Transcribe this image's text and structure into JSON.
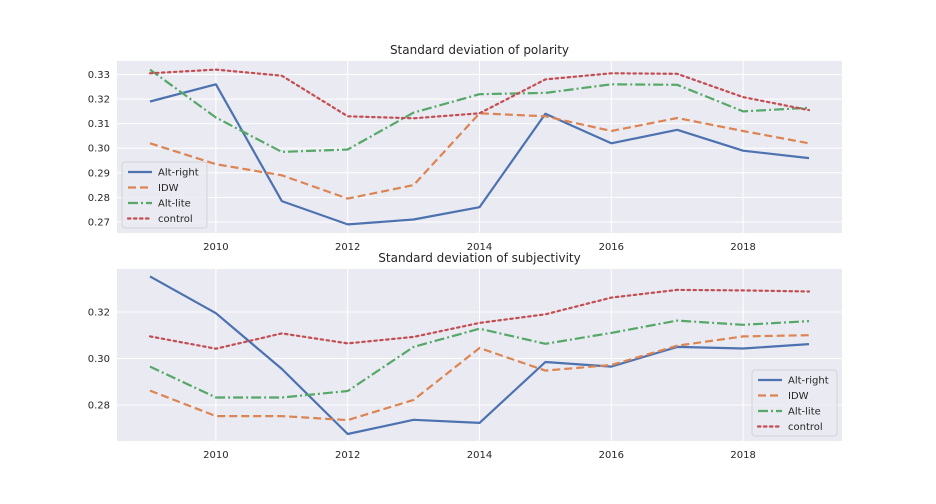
{
  "colors": {
    "plot_bg": "#EAEAF2",
    "grid": "#FFFFFF",
    "text": "#262626",
    "series": [
      "#4C72B0",
      "#DD8452",
      "#55A868",
      "#C44E52"
    ]
  },
  "chart_data": [
    {
      "type": "line",
      "title": "Standard deviation of polarity",
      "xlabel": "",
      "ylabel": "",
      "xlim": [
        2008.5,
        2019.5
      ],
      "ylim": [
        0.2655,
        0.3355
      ],
      "xticks": [
        2010,
        2012,
        2014,
        2016,
        2018
      ],
      "yticks": [
        0.27,
        0.28,
        0.29,
        0.3,
        0.31,
        0.32,
        0.33
      ],
      "ytick_labels": [
        "0.27",
        "0.28",
        "0.29",
        "0.30",
        "0.31",
        "0.32",
        "0.33"
      ],
      "grid": true,
      "legend": "center-left",
      "x": [
        2009,
        2010,
        2011,
        2012,
        2013,
        2014,
        2015,
        2016,
        2017,
        2018,
        2019
      ],
      "series": [
        {
          "name": "Alt-right",
          "dash": "solid",
          "values": [
            0.319,
            0.326,
            0.2785,
            0.269,
            0.271,
            0.276,
            0.314,
            0.302,
            0.3075,
            0.299,
            0.296
          ]
        },
        {
          "name": "IDW",
          "dash": "dashed",
          "values": [
            0.302,
            0.2935,
            0.289,
            0.2795,
            0.285,
            0.3142,
            0.313,
            0.307,
            0.3123,
            0.307,
            0.302
          ]
        },
        {
          "name": "Alt-lite",
          "dash": "dashdot",
          "values": [
            0.332,
            0.3125,
            0.2985,
            0.2995,
            0.3145,
            0.322,
            0.3225,
            0.326,
            0.3258,
            0.315,
            0.3165
          ]
        },
        {
          "name": "control",
          "dash": "dotted",
          "values": [
            0.3305,
            0.332,
            0.3295,
            0.313,
            0.3122,
            0.3142,
            0.328,
            0.3305,
            0.3303,
            0.3208,
            0.3155
          ]
        }
      ]
    },
    {
      "type": "line",
      "title": "Standard deviation of subjectivity",
      "xlabel": "",
      "ylabel": "",
      "xlim": [
        2008.5,
        2019.5
      ],
      "ylim": [
        0.2645,
        0.3385
      ],
      "xticks": [
        2010,
        2012,
        2014,
        2016,
        2018
      ],
      "yticks": [
        0.28,
        0.3,
        0.32
      ],
      "ytick_labels": [
        "0.28",
        "0.30",
        "0.32"
      ],
      "grid": true,
      "legend": "lower-right",
      "x": [
        2009,
        2010,
        2011,
        2012,
        2013,
        2014,
        2015,
        2016,
        2017,
        2018,
        2019
      ],
      "series": [
        {
          "name": "Alt-right",
          "dash": "solid",
          "values": [
            0.3353,
            0.3195,
            0.2955,
            0.2675,
            0.2736,
            0.2723,
            0.2985,
            0.2965,
            0.305,
            0.3043,
            0.3062
          ]
        },
        {
          "name": "IDW",
          "dash": "dashed",
          "values": [
            0.2862,
            0.2752,
            0.2752,
            0.2735,
            0.2822,
            0.3045,
            0.2948,
            0.2972,
            0.3055,
            0.3095,
            0.31
          ]
        },
        {
          "name": "Alt-lite",
          "dash": "dashdot",
          "values": [
            0.2965,
            0.2832,
            0.2832,
            0.286,
            0.305,
            0.3128,
            0.3063,
            0.311,
            0.3163,
            0.3145,
            0.3161
          ]
        },
        {
          "name": "control",
          "dash": "dotted",
          "values": [
            0.3095,
            0.3042,
            0.3108,
            0.3065,
            0.3093,
            0.3153,
            0.319,
            0.3262,
            0.3295,
            0.3293,
            0.3288
          ]
        }
      ]
    }
  ]
}
